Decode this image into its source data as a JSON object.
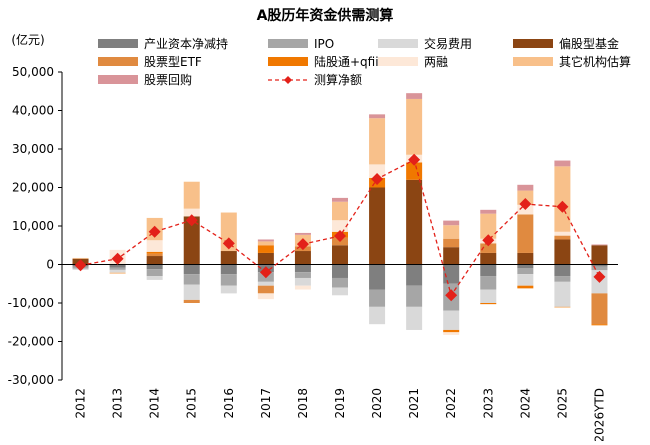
{
  "chart_data": {
    "type": "bar",
    "stacked": true,
    "title": "A股历年资金供需测算",
    "unit": "(亿元)",
    "categories": [
      "2012",
      "2013",
      "2014",
      "2015",
      "2016",
      "2017",
      "2018",
      "2019",
      "2020",
      "2021",
      "2022",
      "2023",
      "2024",
      "2025",
      "2026YTD"
    ],
    "ylim": [
      -30000,
      50000
    ],
    "yticks": [
      -30000,
      -20000,
      -10000,
      0,
      10000,
      20000,
      30000,
      40000,
      50000
    ],
    "ytick_labels": [
      "-30,000",
      "-20,000",
      "-10,000",
      "0",
      "10,000",
      "20,000",
      "30,000",
      "40,000",
      "50,000"
    ],
    "grid": false,
    "legend_position": "top",
    "series": [
      {
        "name": "产业资本净减持",
        "color": "#7f7f7f",
        "values": [
          -500,
          -800,
          -1200,
          -2500,
          -2500,
          -2000,
          -2000,
          -3500,
          -6500,
          -5500,
          -5000,
          -3000,
          -1000,
          -3000,
          -500
        ]
      },
      {
        "name": "IPO",
        "color": "#a6a6a6",
        "values": [
          -600,
          -600,
          -1800,
          -2700,
          -3000,
          -2500,
          -1500,
          -2500,
          -4500,
          -5500,
          -7000,
          -3500,
          -1500,
          -1500,
          -1000
        ]
      },
      {
        "name": "交易费用",
        "color": "#d9d9d9",
        "values": [
          -300,
          -700,
          -1000,
          -4000,
          -2000,
          -1000,
          -2000,
          -2000,
          -4500,
          -6000,
          -5000,
          -3500,
          -3000,
          -6500,
          -6000
        ]
      },
      {
        "name": "偏股型基金",
        "color": "#8b4513",
        "values": [
          1500,
          0,
          2200,
          12500,
          3500,
          3000,
          3500,
          5000,
          20000,
          22000,
          4500,
          3000,
          3000,
          6500,
          5000
        ]
      },
      {
        "name": "股票型ETF",
        "color": "#e08a40",
        "values": [
          0,
          0,
          600,
          -800,
          0,
          -2000,
          1200,
          2000,
          0,
          0,
          2200,
          2500,
          10000,
          1000,
          -8000
        ]
      },
      {
        "name": "陆股通+qfii",
        "color": "#f07800",
        "values": [
          0,
          0,
          500,
          0,
          0,
          2000,
          0,
          1500,
          2500,
          4500,
          -600,
          -300,
          -700,
          -100,
          -300
        ]
      },
      {
        "name": "两融",
        "color": "#fde8d8",
        "values": [
          0,
          3800,
          3000,
          2000,
          0,
          -1500,
          -1000,
          3000,
          3500,
          2000,
          -700,
          1200,
          2500,
          1000,
          0
        ]
      },
      {
        "name": "其它机构估算",
        "color": "#f8c08a",
        "values": [
          200,
          -300,
          5800,
          7000,
          10000,
          1000,
          3000,
          4800,
          12000,
          14500,
          3500,
          6500,
          3700,
          17000,
          0
        ]
      },
      {
        "name": "股票回购",
        "color": "#d99499",
        "values": [
          0,
          0,
          0,
          0,
          0,
          500,
          500,
          1000,
          1000,
          1500,
          1200,
          1000,
          1500,
          1500,
          200
        ]
      }
    ],
    "line": {
      "name": "测算净额",
      "color": "#e32119",
      "values": [
        -200,
        1500,
        8500,
        11500,
        5500,
        -2000,
        5300,
        7400,
        22200,
        27200,
        -8000,
        6300,
        15700,
        15000,
        -3200
      ]
    }
  }
}
